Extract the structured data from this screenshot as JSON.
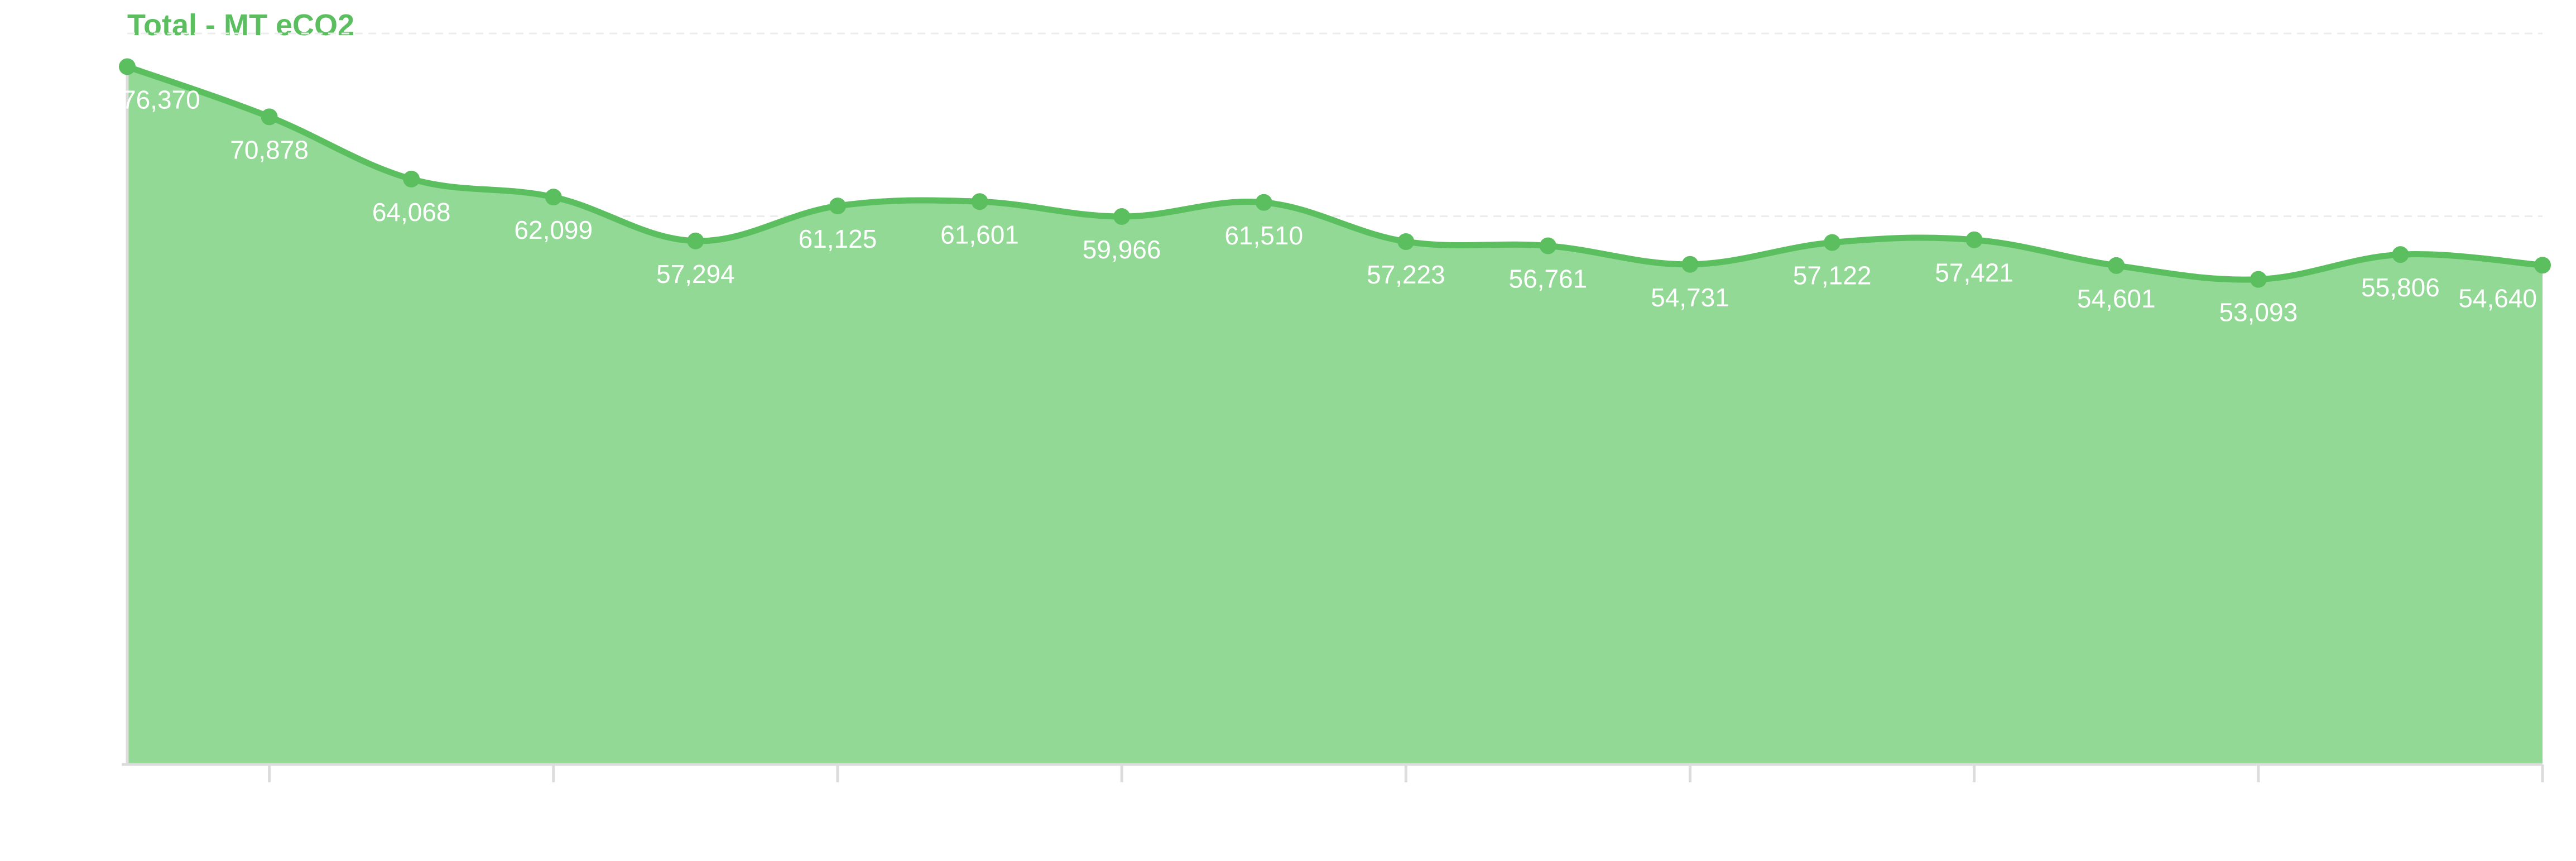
{
  "chart_data": {
    "type": "area",
    "title": "Total - MT eCO2",
    "series": [
      {
        "values": [
          76370,
          70878,
          64068,
          62099,
          57294,
          61125,
          61601,
          59966,
          61510,
          57223,
          56761,
          54731,
          57122,
          57421,
          54601,
          53093,
          55806,
          54640
        ]
      }
    ],
    "data_labels": [
      "76,370",
      "70,878",
      "64,068",
      "62,099",
      "57,294",
      "61,125",
      "61,601",
      "59,966",
      "61,510",
      "57,223",
      "56,761",
      "54,731",
      "57,122",
      "57,421",
      "54,601",
      "53,093",
      "55,806",
      "54,640"
    ],
    "ylim": [
      0,
      80000
    ],
    "grid": true,
    "legend": "none",
    "colors": {
      "fill": "#93d996",
      "line": "#5bbf5f",
      "title": "#5bbf5f",
      "labels": "#ffffff"
    }
  }
}
